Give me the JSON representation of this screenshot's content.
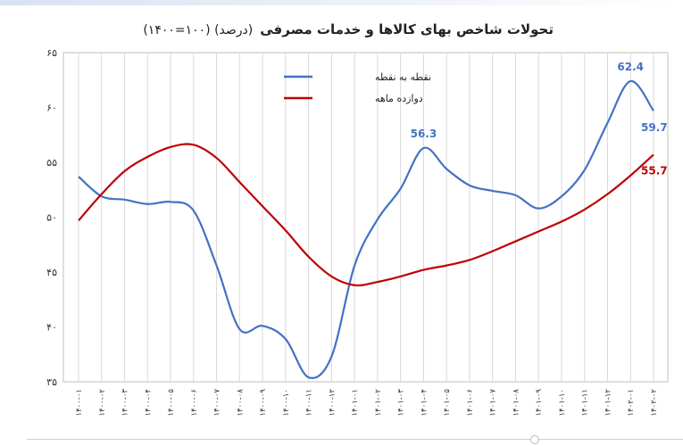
{
  "chart_data": {
    "type": "line",
    "title": "تحولات شاخص بهای کالاها و خدمات مصرفی",
    "subtitle": "(درصد)  (۱۰۰=۱۴۰۰)",
    "ylim": [
      35,
      65
    ],
    "yticks": [
      "۳۵",
      "۴۰",
      "۴۵",
      "۵۰",
      "۵۵",
      "۶۰",
      "۶۵"
    ],
    "categories": [
      "۱۴۰۰-۰۱",
      "۱۴۰۰-۰۲",
      "۱۴۰۰-۰۳",
      "۱۴۰۰-۰۴",
      "۱۴۰۰-۰۵",
      "۱۴۰۰-۰۶",
      "۱۴۰۰-۰۷",
      "۱۴۰۰-۰۸",
      "۱۴۰۰-۰۹",
      "۱۴۰۰-۱۰",
      "۱۴۰۰-۱۱",
      "۱۴۰۰-۱۲",
      "۱۴۰۱-۰۱",
      "۱۴۰۱-۰۲",
      "۱۴۰۱-۰۳",
      "۱۴۰۱-۰۴",
      "۱۴۰۱-۰۵",
      "۱۴۰۱-۰۶",
      "۱۴۰۱-۰۷",
      "۱۴۰۱-۰۸",
      "۱۴۰۱-۰۹",
      "۱۴۰۱-۱۰",
      "۱۴۰۱-۱۱",
      "۱۴۰۱-۱۲",
      "۱۴۰۲-۰۱",
      "۱۴۰۲-۰۲"
    ],
    "series": [
      {
        "name": "نقطه به نقطه",
        "color": "#4472c4",
        "values": [
          53.7,
          51.9,
          51.6,
          51.2,
          51.4,
          50.6,
          45.6,
          39.8,
          40.1,
          38.9,
          35.4,
          37.3,
          45.6,
          49.8,
          52.6,
          56.3,
          54.4,
          52.9,
          52.4,
          52.0,
          50.8,
          51.9,
          54.3,
          58.6,
          62.4,
          59.7
        ],
        "labels": [
          {
            "index": 15,
            "text": "56.3"
          },
          {
            "index": 24,
            "text": "62.4"
          },
          {
            "index": 25,
            "text": "59.7"
          }
        ]
      },
      {
        "name": "دوازده ماهه",
        "color": "#c00000",
        "values": [
          49.7,
          52.1,
          54.2,
          55.5,
          56.4,
          56.6,
          55.4,
          53.2,
          51.0,
          48.8,
          46.4,
          44.6,
          43.8,
          44.1,
          44.6,
          45.2,
          45.6,
          46.1,
          46.9,
          47.8,
          48.7,
          49.6,
          50.7,
          52.1,
          53.8,
          55.7
        ],
        "labels": [
          {
            "index": 25,
            "text": "55.7"
          }
        ]
      }
    ],
    "grid": true,
    "legend_position": "top-center-left"
  }
}
